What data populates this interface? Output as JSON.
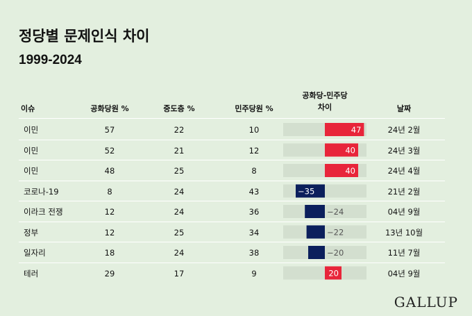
{
  "title": "정당별 문제인식 차이",
  "subtitle": "1999-2024",
  "headers": {
    "issue": "이슈",
    "rep": "공화당원 %",
    "ind": "중도층 %",
    "dem": "민주당원 %",
    "gap_line1": "공화당-민주당",
    "gap_line2": "차이",
    "date": "날짜"
  },
  "rows": [
    {
      "issue": "이민",
      "rep": "57",
      "ind": "22",
      "dem": "10",
      "date": "24년 2월"
    },
    {
      "issue": "이민",
      "rep": "52",
      "ind": "21",
      "dem": "12",
      "date": "24년 3월"
    },
    {
      "issue": "이민",
      "rep": "48",
      "ind": "25",
      "dem": "8",
      "date": "24년 4월"
    },
    {
      "issue": "코로나-19",
      "rep": "8",
      "ind": "24",
      "dem": "43",
      "date": "21년 2월"
    },
    {
      "issue": "이라크 전쟁",
      "rep": "12",
      "ind": "24",
      "dem": "36",
      "date": "04년 9월"
    },
    {
      "issue": "정부",
      "rep": "12",
      "ind": "25",
      "dem": "34",
      "date": "13년 10월"
    },
    {
      "issue": "일자리",
      "rep": "18",
      "ind": "24",
      "dem": "38",
      "date": "11년 7월"
    },
    {
      "issue": "테러",
      "rep": "29",
      "ind": "17",
      "dem": "9",
      "date": "04년 9월"
    }
  ],
  "chart_data": {
    "type": "bar",
    "categories": [
      "이민",
      "이민",
      "이민",
      "코로나-19",
      "이라크 전쟁",
      "정부",
      "일자리",
      "테러"
    ],
    "values": [
      47,
      40,
      40,
      -35,
      -24,
      -22,
      -20,
      20
    ],
    "labels": [
      "47",
      "40",
      "40",
      "−35",
      "−24",
      "−22",
      "−20",
      "20"
    ],
    "xlim": [
      -50,
      50
    ],
    "colors": {
      "positive": "#e8253a",
      "negative": "#0b1f5c",
      "background": "#d3dfcf"
    }
  },
  "brand": "GALLUP"
}
